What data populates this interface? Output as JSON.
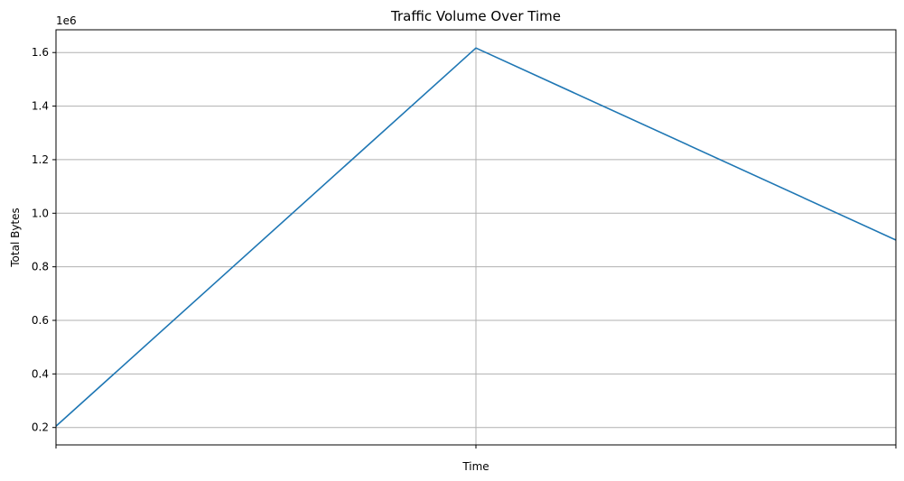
{
  "chart_data": {
    "type": "line",
    "title": "Traffic Volume Over Time",
    "xlabel": "Time",
    "ylabel": "Total Bytes",
    "y_offset_label": "1e6",
    "x": [
      0,
      1,
      2
    ],
    "x_tick_labels": [
      "",
      "",
      ""
    ],
    "xlim": [
      0,
      2
    ],
    "ylim": [
      0.135,
      1.685
    ],
    "y_ticks": [
      0.2,
      0.4,
      0.6,
      0.8,
      1.0,
      1.2,
      1.4,
      1.6
    ],
    "y_tick_labels": [
      "0.2",
      "0.4",
      "0.6",
      "0.8",
      "1.0",
      "1.2",
      "1.4",
      "1.6"
    ],
    "grid": true,
    "series": [
      {
        "values": [
          0.205,
          1.617,
          0.9
        ],
        "color": "#1f77b4"
      }
    ]
  }
}
